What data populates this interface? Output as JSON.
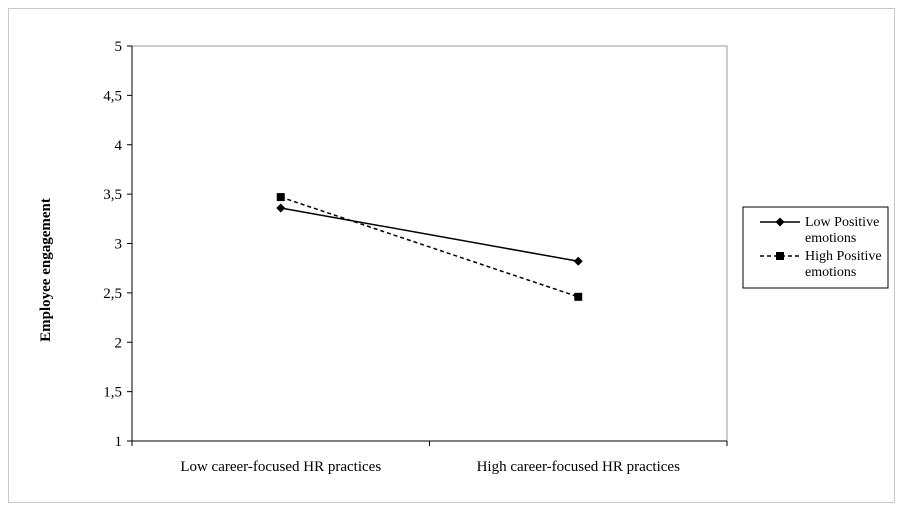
{
  "chart_data": {
    "type": "line",
    "title": "",
    "xlabel": "",
    "ylabel": "Employee engagement",
    "categories": [
      "Low career-focused HR practices",
      "High career-focused HR practices"
    ],
    "ylim": [
      1,
      5
    ],
    "yticks": [
      "1",
      "1,5",
      "2",
      "2,5",
      "3",
      "3,5",
      "4",
      "4,5",
      "5"
    ],
    "ytick_values": [
      1,
      1.5,
      2,
      2.5,
      3,
      3.5,
      4,
      4.5,
      5
    ],
    "grid": false,
    "legend_position": "right",
    "series": [
      {
        "name": "Low Positive emotions",
        "legend_lines": [
          "Low Positive",
          "emotions"
        ],
        "values": [
          3.36,
          2.82
        ],
        "marker": "diamond",
        "line_style": "solid",
        "color": "#000000"
      },
      {
        "name": "High Positive emotions",
        "legend_lines": [
          "High Positive",
          "emotions"
        ],
        "values": [
          3.47,
          2.46
        ],
        "marker": "square",
        "line_style": "dashed",
        "color": "#000000"
      }
    ]
  }
}
